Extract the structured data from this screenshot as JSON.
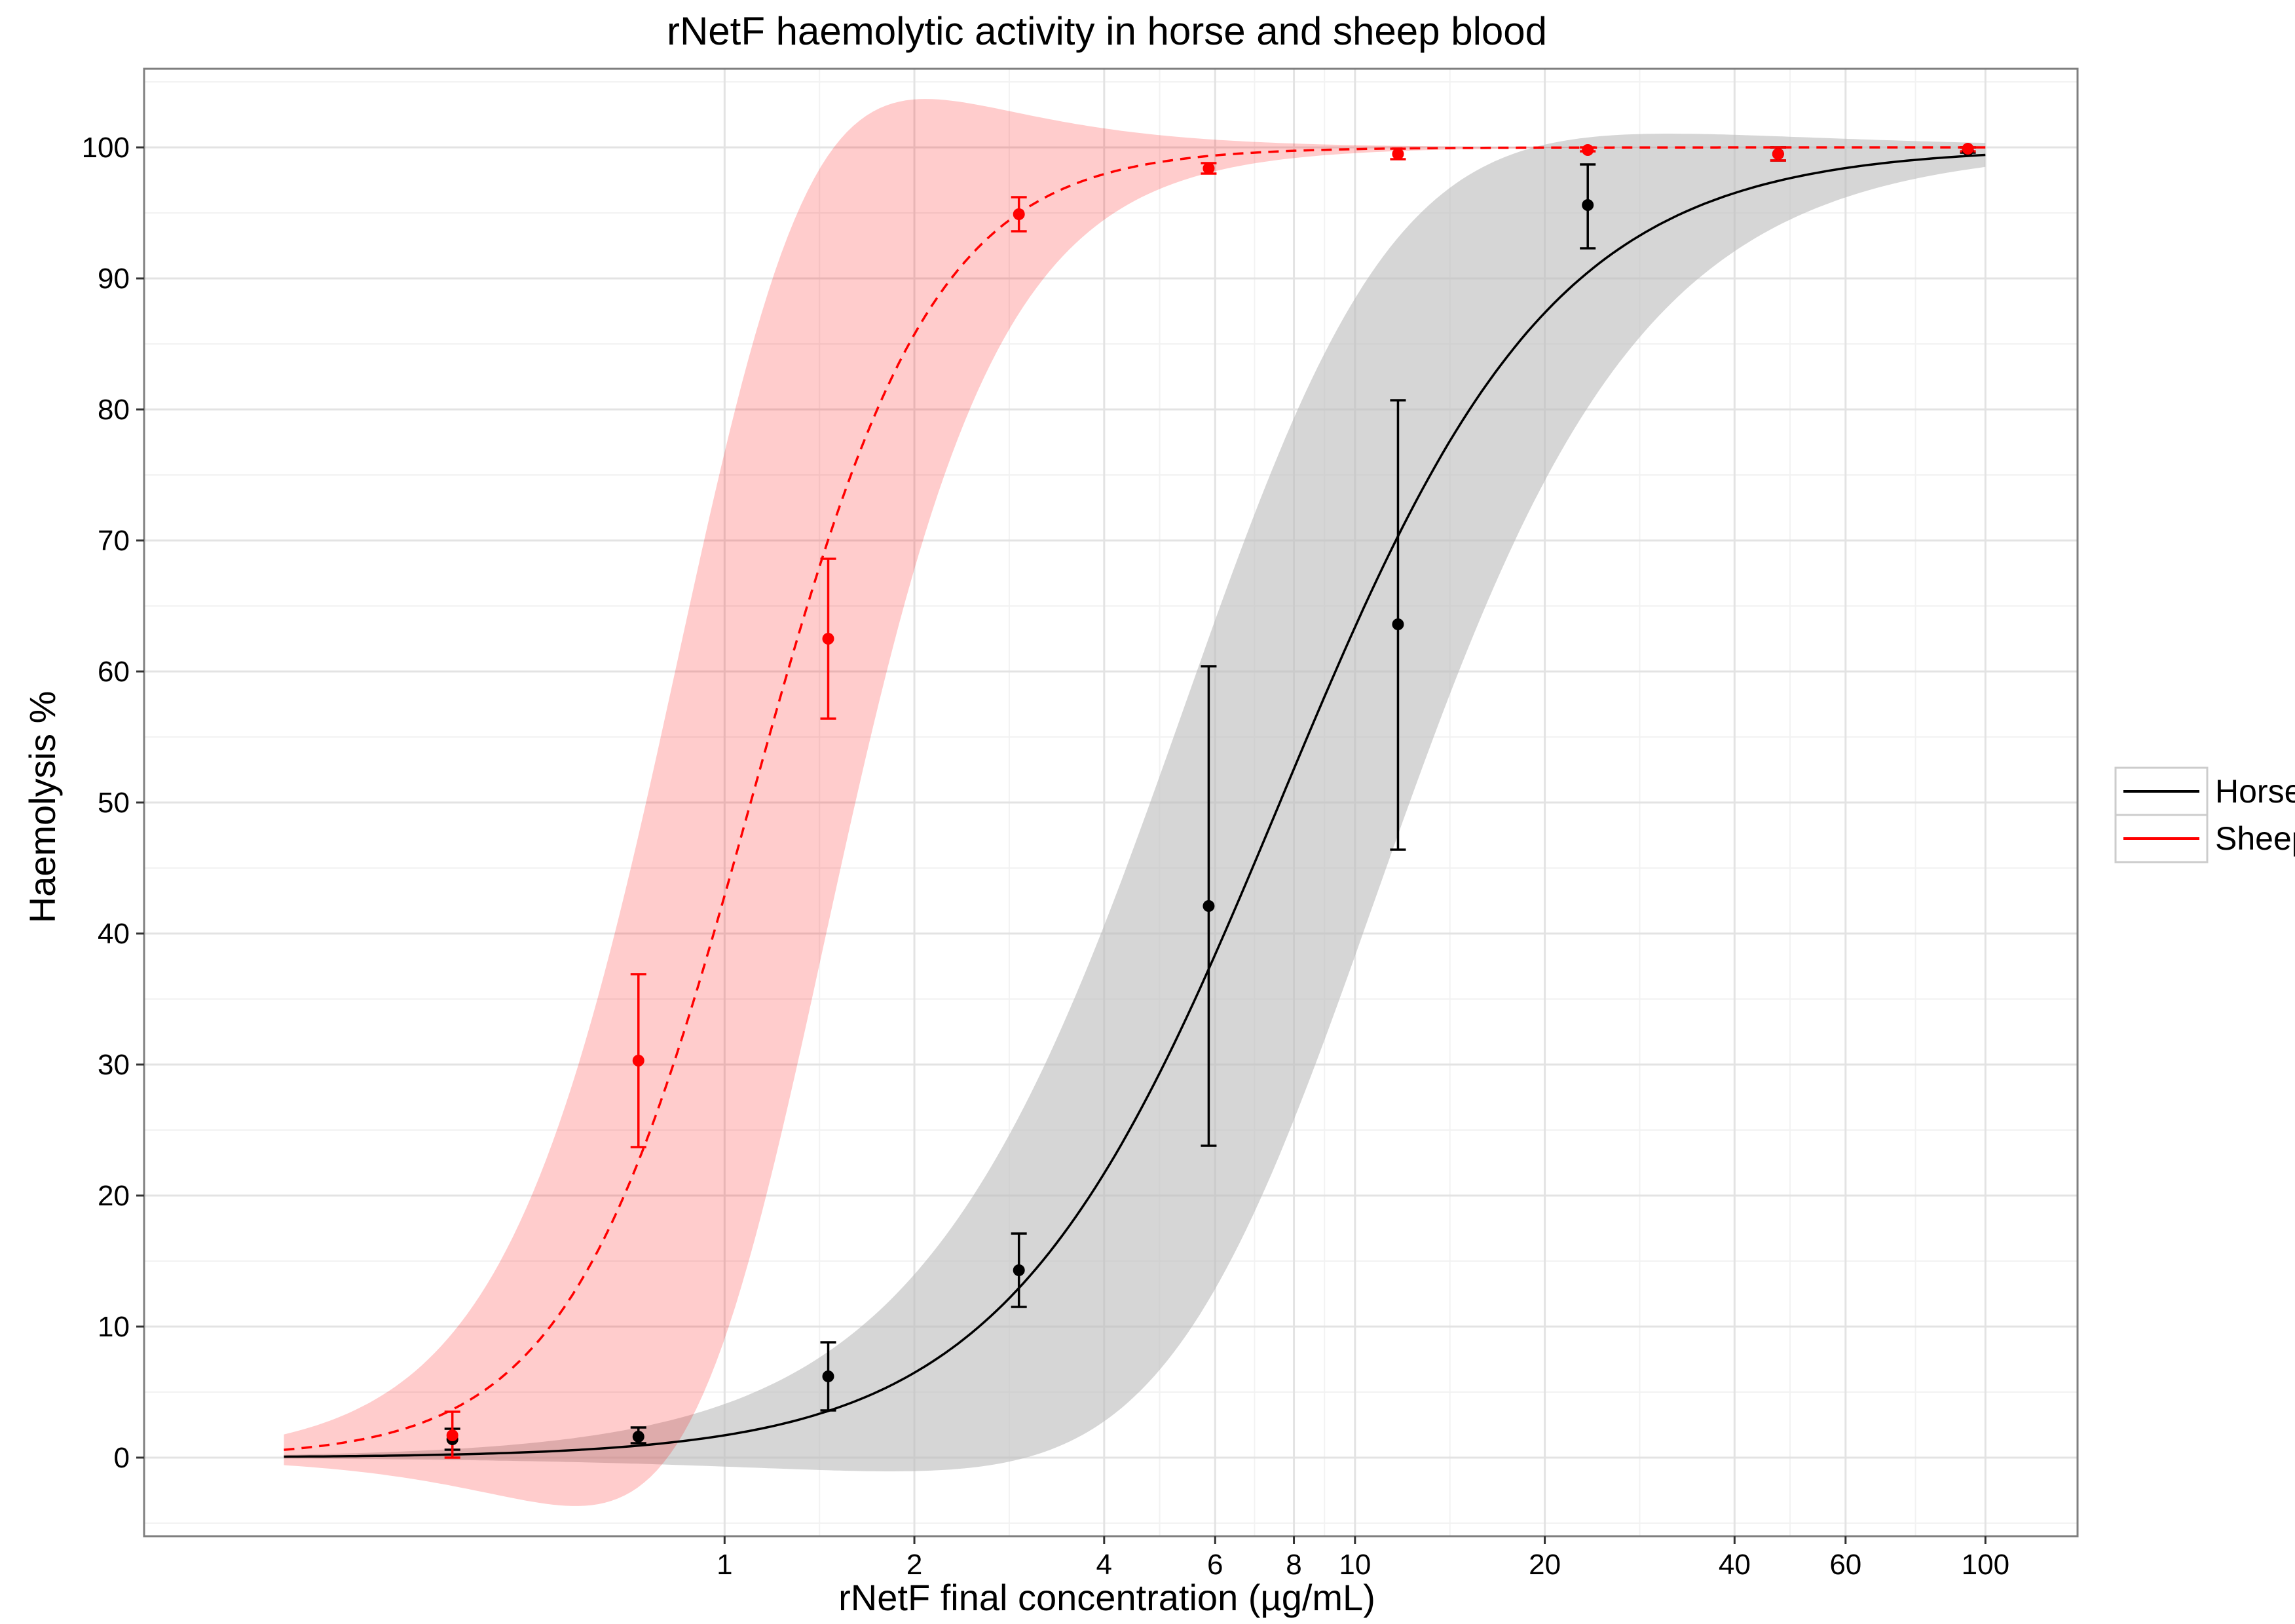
{
  "chart_data": {
    "type": "scatter",
    "title": "rNetF haemolytic activity in horse and sheep blood",
    "xlabel": "rNetF final concentration (µg/mL)",
    "ylabel": "Haemolysis %",
    "x_scale": "log10",
    "xlim": [
      0.12,
      140
    ],
    "ylim": [
      -6,
      106
    ],
    "x_ticks": [
      1,
      2,
      4,
      6,
      8,
      10,
      20,
      40,
      60,
      100
    ],
    "x_tick_labels": [
      "1",
      "2",
      "4",
      "6",
      "8",
      "10",
      "20",
      "40",
      "60",
      "100"
    ],
    "y_ticks": [
      0,
      10,
      20,
      30,
      40,
      50,
      60,
      70,
      80,
      90,
      100
    ],
    "y_tick_labels": [
      "0",
      "10",
      "20",
      "30",
      "40",
      "50",
      "60",
      "70",
      "80",
      "90",
      "100"
    ],
    "grid": true,
    "legend_position": "right",
    "series": [
      {
        "name": "Horse",
        "color": "#000000",
        "band_color": "#bdbdbd",
        "line_style": "solid",
        "x": [
          0.37,
          0.73,
          1.46,
          2.93,
          5.86,
          11.7,
          23.4,
          46.9,
          93.8
        ],
        "y": [
          1.4,
          1.6,
          6.2,
          14.3,
          42.1,
          63.6,
          95.6,
          99.5,
          99.8
        ],
        "err_low": [
          0.6,
          1.1,
          3.6,
          11.5,
          23.8,
          46.4,
          92.3,
          99.0,
          99.6
        ],
        "err_high": [
          2.2,
          2.3,
          8.8,
          17.1,
          60.4,
          80.7,
          98.7,
          100.0,
          100.0
        ],
        "fit": {
          "model": "log-logistic",
          "ec50": 7.6,
          "hill": 2.0
        }
      },
      {
        "name": "Sheep",
        "color": "#ff0000",
        "band_color": "#ff0000",
        "line_style": "dashed",
        "x": [
          0.37,
          0.73,
          1.46,
          2.93,
          5.86,
          11.7,
          23.4,
          46.9,
          93.8
        ],
        "y": [
          1.7,
          30.3,
          62.5,
          94.9,
          98.4,
          99.5,
          99.8,
          99.5,
          99.9
        ],
        "err_low": [
          0.0,
          23.7,
          56.4,
          93.6,
          98.0,
          99.1,
          99.7,
          99.0,
          99.7
        ],
        "err_high": [
          3.5,
          36.9,
          68.6,
          96.2,
          98.8,
          99.9,
          100.0,
          100.0,
          100.0
        ],
        "fit": {
          "model": "log-logistic",
          "ec50": 1.1,
          "hill": 3.0
        }
      }
    ]
  }
}
